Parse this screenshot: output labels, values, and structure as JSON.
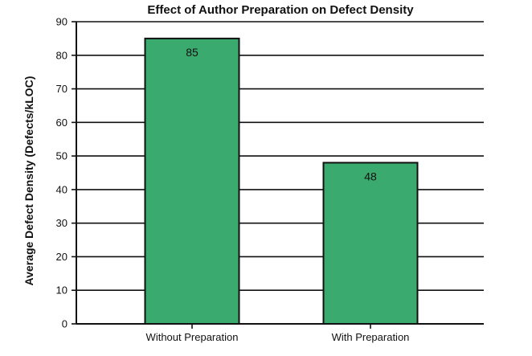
{
  "chart_data": {
    "type": "bar",
    "title": "Effect of Author Preparation on Defect Density",
    "xlabel": "",
    "ylabel": "Average Defect Density (Defects/kLOC)",
    "categories": [
      "Without Preparation",
      "With Preparation"
    ],
    "values": [
      85,
      48
    ],
    "data_labels": [
      "85",
      "48"
    ],
    "ylim": [
      0,
      90
    ],
    "yticks": [
      0,
      10,
      20,
      30,
      40,
      50,
      60,
      70,
      80,
      90
    ],
    "ytick_labels": [
      "0",
      "10",
      "20",
      "30",
      "40",
      "50",
      "60",
      "70",
      "80",
      "90"
    ],
    "grid": true,
    "legend": "none",
    "colors": {
      "bar_fill": "#3aaa6e",
      "bar_edge": "#111111",
      "grid": "#111111",
      "axis": "#111111"
    }
  }
}
